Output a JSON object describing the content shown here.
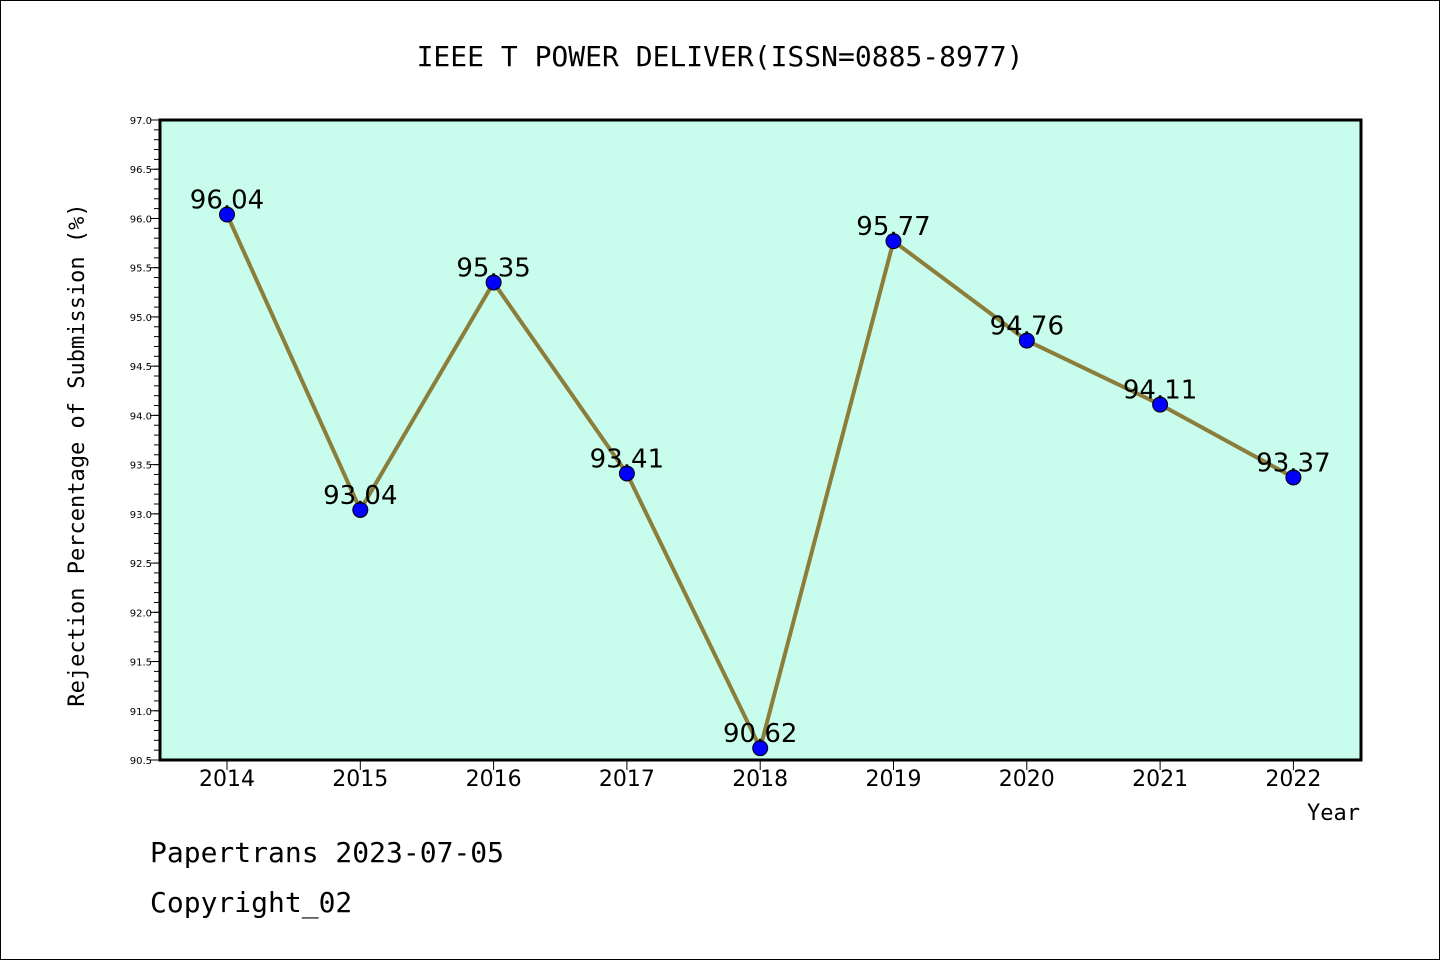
{
  "chart_data": {
    "type": "line",
    "title": "IEEE T POWER DELIVER(ISSN=0885-8977)",
    "xlabel": "Year",
    "ylabel": "Rejection Percentage of Submission (%)",
    "categories": [
      "2014",
      "2015",
      "2016",
      "2017",
      "2018",
      "2019",
      "2020",
      "2021",
      "2022"
    ],
    "values": [
      96.04,
      93.04,
      95.35,
      93.41,
      90.62,
      95.77,
      94.76,
      94.11,
      93.37
    ],
    "data_labels": [
      "96.04",
      "93.04",
      "95.35",
      "93.41",
      "90.62",
      "95.77",
      "94.76",
      "94.11",
      "93.37"
    ],
    "ylim": [
      90.5,
      97.0
    ],
    "y_ticks": [
      "90.5",
      "91.0",
      "91.5",
      "92.0",
      "92.5",
      "93.0",
      "93.5",
      "94.0",
      "94.5",
      "95.0",
      "95.5",
      "96.0",
      "96.5",
      "97.0"
    ],
    "grid": false,
    "legend": "none",
    "colors": {
      "plot_background": "#c8fcec",
      "line": "#8b7d3a",
      "marker": "#0000ff"
    }
  },
  "footer": {
    "line1": "Papertrans 2023-07-05",
    "line2": "Copyright_02"
  }
}
